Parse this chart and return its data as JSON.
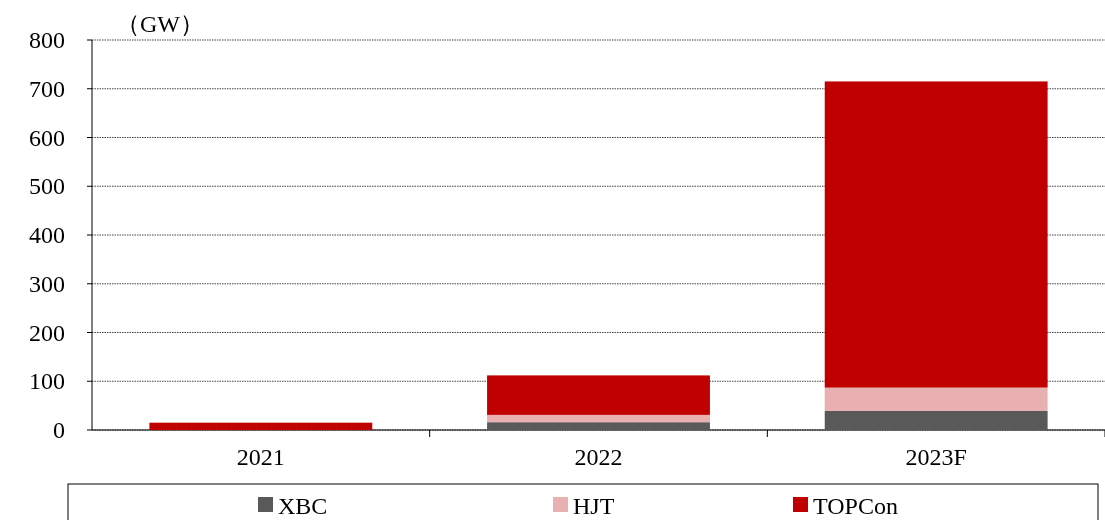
{
  "chart_data": {
    "type": "bar",
    "stacked": true,
    "ylabel": "（GW）",
    "categories": [
      "2021",
      "2022",
      "2023F"
    ],
    "series": [
      {
        "name": "XBC",
        "color": "#595959",
        "values": [
          0,
          16,
          39
        ]
      },
      {
        "name": "HJT",
        "color": "#e8b0b0",
        "values": [
          0,
          15,
          48
        ]
      },
      {
        "name": "TOPCon",
        "color": "#c00000",
        "values": [
          15,
          81,
          628
        ]
      }
    ],
    "ylim": [
      0,
      800
    ],
    "yticks": [
      0,
      100,
      200,
      300,
      400,
      500,
      600,
      700,
      800
    ],
    "grid": "y",
    "legend": "bottom"
  }
}
